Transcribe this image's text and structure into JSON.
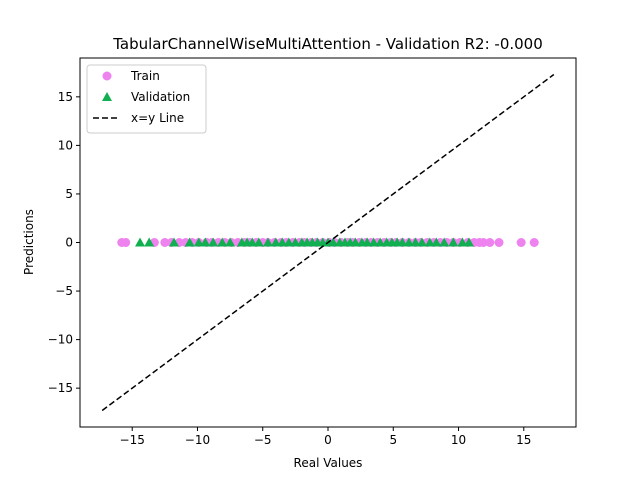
{
  "chart_data": {
    "type": "scatter",
    "title": "TabularChannelWiseMultiAttention - Validation R2: -0.000",
    "xlabel": "Real Values",
    "ylabel": "Predictions",
    "xlim": [
      -19.0,
      19.0
    ],
    "ylim": [
      -19.0,
      19.0
    ],
    "xticks": [
      -15,
      -10,
      -5,
      0,
      5,
      10,
      15
    ],
    "yticks": [
      -15,
      -10,
      -5,
      0,
      5,
      10,
      15
    ],
    "grid": false,
    "legend_position": "upper-left",
    "series": [
      {
        "name": "Train",
        "label": "Train",
        "marker": "circle",
        "color": "#ee82ee",
        "points": [
          [
            -15.8,
            0.0
          ],
          [
            -15.5,
            0.0
          ],
          [
            -13.3,
            0.0
          ],
          [
            -12.5,
            0.0
          ],
          [
            -12.0,
            0.0
          ],
          [
            -11.4,
            0.0
          ],
          [
            -10.9,
            0.0
          ],
          [
            -10.4,
            0.0
          ],
          [
            -9.9,
            0.0
          ],
          [
            -9.3,
            0.0
          ],
          [
            -8.9,
            0.0
          ],
          [
            -8.4,
            0.0
          ],
          [
            -7.9,
            0.0
          ],
          [
            -7.4,
            0.0
          ],
          [
            -6.9,
            0.0
          ],
          [
            -6.4,
            0.0
          ],
          [
            -6.0,
            0.0
          ],
          [
            -5.5,
            0.0
          ],
          [
            -5.0,
            0.0
          ],
          [
            -4.6,
            0.0
          ],
          [
            -4.1,
            0.0
          ],
          [
            -3.6,
            0.0
          ],
          [
            -3.2,
            0.0
          ],
          [
            -2.7,
            0.0
          ],
          [
            -2.2,
            0.0
          ],
          [
            -1.8,
            0.0
          ],
          [
            -1.3,
            0.0
          ],
          [
            -0.9,
            0.0
          ],
          [
            -0.4,
            0.0
          ],
          [
            0.1,
            0.0
          ],
          [
            0.5,
            0.0
          ],
          [
            1.0,
            0.0
          ],
          [
            1.5,
            0.0
          ],
          [
            1.9,
            0.0
          ],
          [
            2.4,
            0.0
          ],
          [
            2.9,
            0.0
          ],
          [
            3.3,
            0.0
          ],
          [
            3.8,
            0.0
          ],
          [
            4.3,
            0.0
          ],
          [
            4.8,
            0.0
          ],
          [
            5.2,
            0.0
          ],
          [
            5.7,
            0.0
          ],
          [
            6.2,
            0.0
          ],
          [
            6.7,
            0.0
          ],
          [
            7.1,
            0.0
          ],
          [
            7.6,
            0.0
          ],
          [
            8.1,
            0.0
          ],
          [
            8.6,
            0.0
          ],
          [
            9.1,
            0.0
          ],
          [
            9.6,
            0.0
          ],
          [
            10.1,
            0.0
          ],
          [
            10.7,
            0.0
          ],
          [
            11.2,
            0.0
          ],
          [
            11.6,
            0.0
          ],
          [
            11.9,
            0.0
          ],
          [
            12.4,
            0.0
          ],
          [
            13.1,
            0.0
          ],
          [
            14.8,
            0.0
          ],
          [
            15.8,
            0.0
          ]
        ]
      },
      {
        "name": "Validation",
        "label": "Validation",
        "marker": "triangle",
        "color": "#10b050",
        "points": [
          [
            -14.4,
            0.0
          ],
          [
            -13.7,
            0.0
          ],
          [
            -11.8,
            0.0
          ],
          [
            -10.6,
            0.0
          ],
          [
            -9.9,
            0.0
          ],
          [
            -9.4,
            0.0
          ],
          [
            -8.8,
            0.0
          ],
          [
            -8.1,
            0.0
          ],
          [
            -7.5,
            0.0
          ],
          [
            -6.6,
            0.0
          ],
          [
            -6.2,
            0.0
          ],
          [
            -5.8,
            0.0
          ],
          [
            -5.3,
            0.0
          ],
          [
            -4.6,
            0.0
          ],
          [
            -4.0,
            0.0
          ],
          [
            -3.5,
            0.0
          ],
          [
            -3.0,
            0.0
          ],
          [
            -2.5,
            0.0
          ],
          [
            -2.0,
            0.0
          ],
          [
            -1.6,
            0.0
          ],
          [
            -1.2,
            0.0
          ],
          [
            -0.8,
            0.0
          ],
          [
            -0.4,
            0.0
          ],
          [
            0.0,
            0.0
          ],
          [
            0.4,
            0.0
          ],
          [
            0.9,
            0.0
          ],
          [
            1.3,
            0.0
          ],
          [
            1.7,
            0.0
          ],
          [
            2.1,
            0.0
          ],
          [
            2.6,
            0.0
          ],
          [
            3.0,
            0.0
          ],
          [
            3.5,
            0.0
          ],
          [
            4.0,
            0.0
          ],
          [
            4.5,
            0.0
          ],
          [
            4.9,
            0.0
          ],
          [
            5.3,
            0.0
          ],
          [
            5.7,
            0.0
          ],
          [
            6.2,
            0.0
          ],
          [
            6.7,
            0.0
          ],
          [
            7.2,
            0.0
          ],
          [
            7.8,
            0.0
          ],
          [
            8.3,
            0.0
          ],
          [
            8.9,
            0.0
          ],
          [
            9.6,
            0.0
          ],
          [
            10.3,
            0.0
          ],
          [
            10.8,
            0.0
          ]
        ]
      },
      {
        "name": "x=y Line",
        "label": "x=y Line",
        "marker": "line",
        "style": "dashed",
        "color": "#000000",
        "points": [
          [
            -17.3,
            -17.3
          ],
          [
            17.3,
            17.3
          ]
        ]
      }
    ]
  }
}
